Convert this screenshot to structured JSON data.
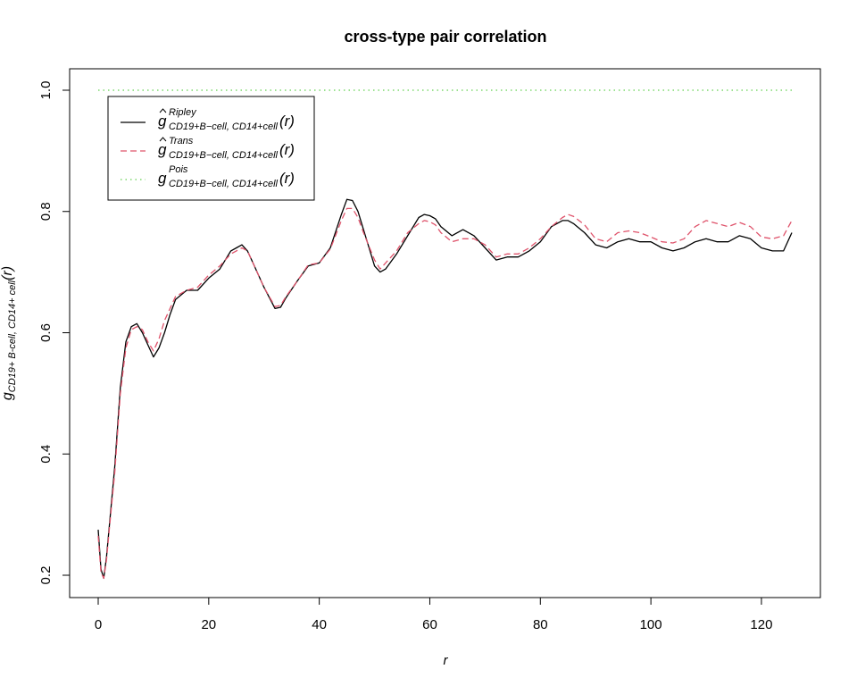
{
  "chart_data": {
    "type": "line",
    "title": "cross-type pair correlation",
    "xlabel": "r",
    "ylabel": {
      "main": "g",
      "sub": "CD19+ B-cell, CD14+ cell",
      "arg": "(r)"
    },
    "xlim": [
      0,
      125.5
    ],
    "ylim": [
      0.2,
      1.0
    ],
    "xticks": [
      0,
      20,
      40,
      60,
      80,
      100,
      120
    ],
    "yticks": [
      0.2,
      0.4,
      0.6,
      0.8,
      1.0
    ],
    "ytick_labels": [
      "0.2",
      "0.4",
      "0.6",
      "0.8",
      "1.0"
    ],
    "grid": false,
    "legend_position": "top-left",
    "x": [
      0,
      0.5,
      1,
      1.5,
      2,
      3,
      4,
      5,
      6,
      7,
      8,
      9,
      10,
      11,
      12,
      13,
      14,
      16,
      18,
      20,
      22,
      24,
      25,
      26,
      27,
      28,
      30,
      32,
      33,
      34,
      36,
      38,
      40,
      42,
      44,
      45,
      46,
      47,
      48,
      50,
      51,
      52,
      54,
      56,
      58,
      59,
      60,
      61,
      62,
      64,
      66,
      68,
      70,
      72,
      74,
      76,
      78,
      80,
      82,
      84,
      85,
      86,
      88,
      90,
      92,
      94,
      96,
      98,
      100,
      102,
      104,
      106,
      108,
      110,
      112,
      114,
      116,
      118,
      120,
      122,
      124,
      125.5
    ],
    "series": [
      {
        "name": "Ripley",
        "color": "#000000",
        "dash": "solid",
        "values": [
          0.275,
          0.21,
          0.195,
          0.23,
          0.28,
          0.38,
          0.51,
          0.585,
          0.61,
          0.615,
          0.6,
          0.58,
          0.56,
          0.575,
          0.6,
          0.63,
          0.655,
          0.67,
          0.67,
          0.69,
          0.705,
          0.735,
          0.74,
          0.745,
          0.735,
          0.715,
          0.675,
          0.64,
          0.642,
          0.658,
          0.685,
          0.71,
          0.715,
          0.74,
          0.795,
          0.82,
          0.818,
          0.8,
          0.77,
          0.71,
          0.7,
          0.705,
          0.73,
          0.76,
          0.79,
          0.795,
          0.793,
          0.788,
          0.775,
          0.76,
          0.77,
          0.76,
          0.74,
          0.72,
          0.725,
          0.725,
          0.735,
          0.75,
          0.775,
          0.785,
          0.785,
          0.78,
          0.765,
          0.745,
          0.74,
          0.75,
          0.755,
          0.75,
          0.75,
          0.74,
          0.735,
          0.74,
          0.75,
          0.755,
          0.75,
          0.75,
          0.76,
          0.755,
          0.74,
          0.735,
          0.735,
          0.765
        ]
      },
      {
        "name": "Trans",
        "color": "#df536b",
        "dash": "dashed",
        "values": [
          0.265,
          0.205,
          0.195,
          0.225,
          0.275,
          0.37,
          0.5,
          0.575,
          0.605,
          0.61,
          0.605,
          0.585,
          0.57,
          0.59,
          0.62,
          0.64,
          0.66,
          0.67,
          0.675,
          0.695,
          0.71,
          0.73,
          0.735,
          0.74,
          0.735,
          0.715,
          0.675,
          0.643,
          0.645,
          0.66,
          0.685,
          0.712,
          0.715,
          0.738,
          0.785,
          0.805,
          0.805,
          0.79,
          0.765,
          0.72,
          0.705,
          0.715,
          0.735,
          0.765,
          0.78,
          0.785,
          0.783,
          0.778,
          0.765,
          0.75,
          0.755,
          0.755,
          0.745,
          0.725,
          0.73,
          0.73,
          0.74,
          0.755,
          0.775,
          0.79,
          0.795,
          0.792,
          0.778,
          0.755,
          0.75,
          0.765,
          0.768,
          0.765,
          0.758,
          0.75,
          0.748,
          0.755,
          0.775,
          0.785,
          0.78,
          0.775,
          0.782,
          0.775,
          0.758,
          0.755,
          0.76,
          0.785
        ]
      },
      {
        "name": "Pois",
        "color": "#61d04f",
        "dash": "dotted",
        "values": [
          1,
          1,
          1,
          1,
          1,
          1,
          1,
          1,
          1,
          1,
          1,
          1,
          1,
          1,
          1,
          1,
          1,
          1,
          1,
          1,
          1,
          1,
          1,
          1,
          1,
          1,
          1,
          1,
          1,
          1,
          1,
          1,
          1,
          1,
          1,
          1,
          1,
          1,
          1,
          1,
          1,
          1,
          1,
          1,
          1,
          1,
          1,
          1,
          1,
          1,
          1,
          1,
          1,
          1,
          1,
          1,
          1,
          1,
          1,
          1,
          1,
          1,
          1,
          1,
          1,
          1,
          1,
          1,
          1,
          1,
          1,
          1,
          1,
          1,
          1,
          1,
          1,
          1,
          1,
          1,
          1,
          1
        ]
      }
    ],
    "legend": [
      {
        "series": "Ripley",
        "main": "g",
        "hat": true,
        "sup": "Ripley",
        "sub": "CD19+B−cell, CD14+cell",
        "arg": "(r)"
      },
      {
        "series": "Trans",
        "main": "g",
        "hat": true,
        "sup": "Trans",
        "sub": "CD19+B−cell, CD14+cell",
        "arg": "(r)"
      },
      {
        "series": "Pois",
        "main": "g",
        "hat": false,
        "sup": "Pois",
        "sub": "CD19+B−cell, CD14+cell",
        "arg": "(r)"
      }
    ]
  }
}
